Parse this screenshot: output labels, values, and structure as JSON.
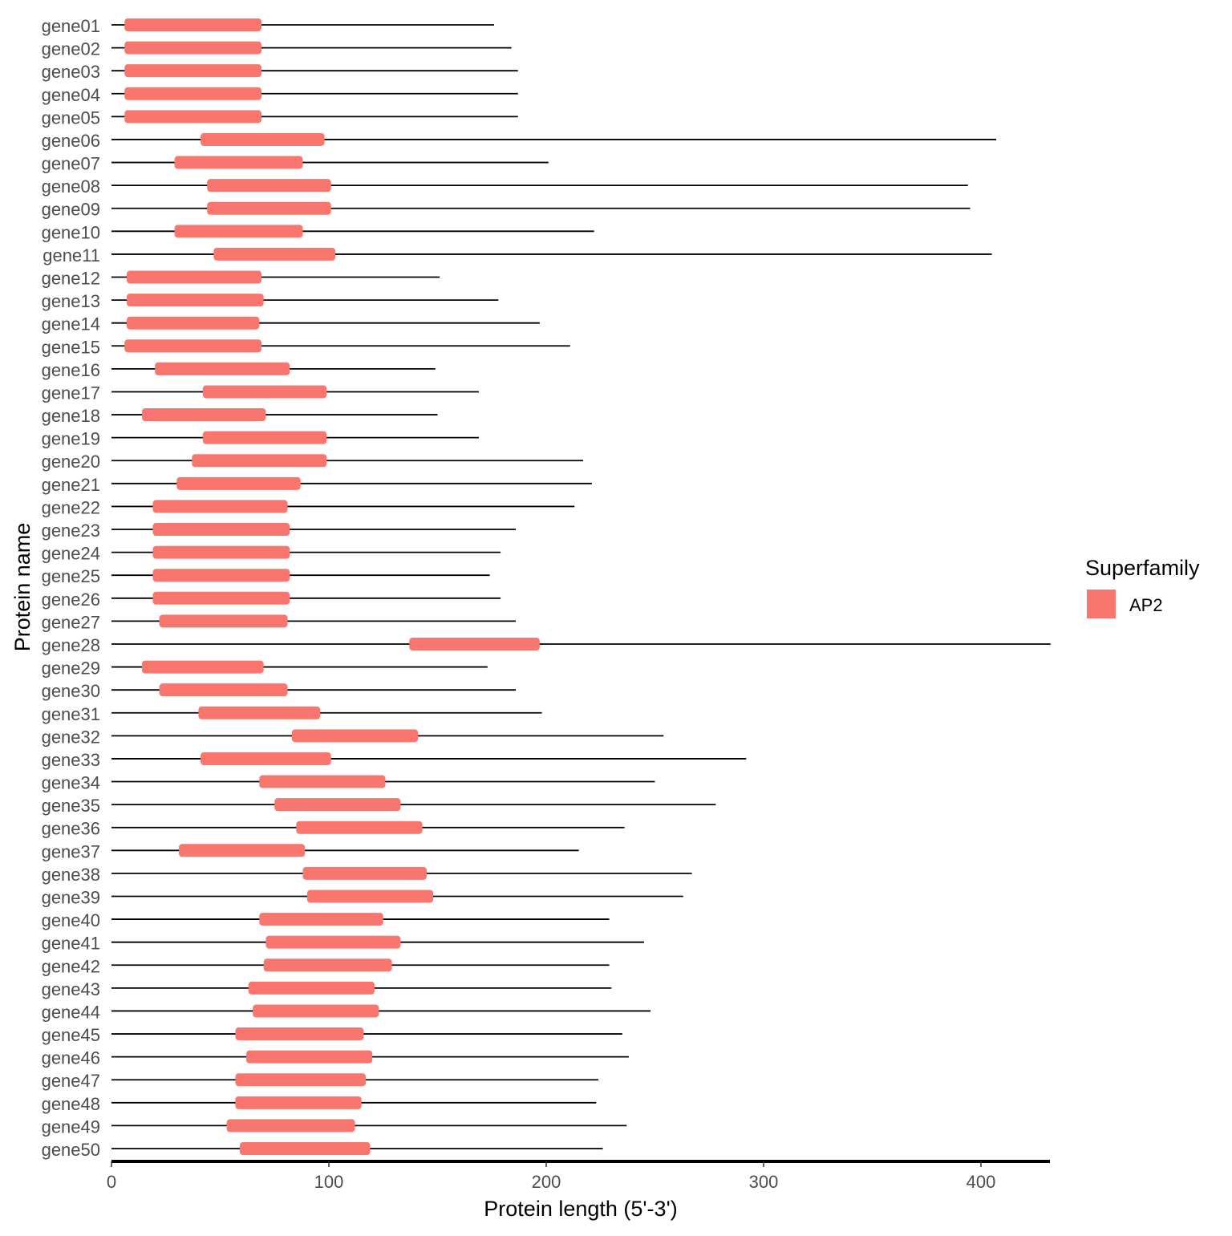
{
  "chart_data": {
    "type": "bar",
    "subtype": "protein-domain-map",
    "xlabel": "Protein length (5'-3')",
    "ylabel": "Protein name",
    "xlim": [
      0,
      432
    ],
    "xticks": [
      0,
      100,
      200,
      300,
      400
    ],
    "grid": false,
    "legend": {
      "title": "Superfamily",
      "position": "right",
      "entries": [
        {
          "label": "AP2",
          "color": "#F8766D"
        }
      ]
    },
    "line_color": "#000000",
    "proteins": [
      {
        "name": "gene01",
        "length": 176,
        "domain": [
          6,
          69
        ]
      },
      {
        "name": "gene02",
        "length": 184,
        "domain": [
          6,
          69
        ]
      },
      {
        "name": "gene03",
        "length": 187,
        "domain": [
          6,
          69
        ]
      },
      {
        "name": "gene04",
        "length": 187,
        "domain": [
          6,
          69
        ]
      },
      {
        "name": "gene05",
        "length": 187,
        "domain": [
          6,
          69
        ]
      },
      {
        "name": "gene06",
        "length": 407,
        "domain": [
          41,
          98
        ]
      },
      {
        "name": "gene07",
        "length": 201,
        "domain": [
          29,
          88
        ]
      },
      {
        "name": "gene08",
        "length": 394,
        "domain": [
          44,
          101
        ]
      },
      {
        "name": "gene09",
        "length": 395,
        "domain": [
          44,
          101
        ]
      },
      {
        "name": "gene10",
        "length": 222,
        "domain": [
          29,
          88
        ]
      },
      {
        "name": "gene11",
        "length": 405,
        "domain": [
          47,
          103
        ]
      },
      {
        "name": "gene12",
        "length": 151,
        "domain": [
          7,
          69
        ]
      },
      {
        "name": "gene13",
        "length": 178,
        "domain": [
          7,
          70
        ]
      },
      {
        "name": "gene14",
        "length": 197,
        "domain": [
          7,
          68
        ]
      },
      {
        "name": "gene15",
        "length": 211,
        "domain": [
          6,
          69
        ]
      },
      {
        "name": "gene16",
        "length": 149,
        "domain": [
          20,
          82
        ]
      },
      {
        "name": "gene17",
        "length": 169,
        "domain": [
          42,
          99
        ]
      },
      {
        "name": "gene18",
        "length": 150,
        "domain": [
          14,
          71
        ]
      },
      {
        "name": "gene19",
        "length": 169,
        "domain": [
          42,
          99
        ]
      },
      {
        "name": "gene20",
        "length": 217,
        "domain": [
          37,
          99
        ]
      },
      {
        "name": "gene21",
        "length": 221,
        "domain": [
          30,
          87
        ]
      },
      {
        "name": "gene22",
        "length": 213,
        "domain": [
          19,
          81
        ]
      },
      {
        "name": "gene23",
        "length": 186,
        "domain": [
          19,
          82
        ]
      },
      {
        "name": "gene24",
        "length": 179,
        "domain": [
          19,
          82
        ]
      },
      {
        "name": "gene25",
        "length": 174,
        "domain": [
          19,
          82
        ]
      },
      {
        "name": "gene26",
        "length": 179,
        "domain": [
          19,
          82
        ]
      },
      {
        "name": "gene27",
        "length": 186,
        "domain": [
          22,
          81
        ]
      },
      {
        "name": "gene28",
        "length": 432,
        "domain": [
          137,
          197
        ]
      },
      {
        "name": "gene29",
        "length": 173,
        "domain": [
          14,
          70
        ]
      },
      {
        "name": "gene30",
        "length": 186,
        "domain": [
          22,
          81
        ]
      },
      {
        "name": "gene31",
        "length": 198,
        "domain": [
          40,
          96
        ]
      },
      {
        "name": "gene32",
        "length": 254,
        "domain": [
          83,
          141
        ]
      },
      {
        "name": "gene33",
        "length": 292,
        "domain": [
          41,
          101
        ]
      },
      {
        "name": "gene34",
        "length": 250,
        "domain": [
          68,
          126
        ]
      },
      {
        "name": "gene35",
        "length": 278,
        "domain": [
          75,
          133
        ]
      },
      {
        "name": "gene36",
        "length": 236,
        "domain": [
          85,
          143
        ]
      },
      {
        "name": "gene37",
        "length": 215,
        "domain": [
          31,
          89
        ]
      },
      {
        "name": "gene38",
        "length": 267,
        "domain": [
          88,
          145
        ]
      },
      {
        "name": "gene39",
        "length": 263,
        "domain": [
          90,
          148
        ]
      },
      {
        "name": "gene40",
        "length": 229,
        "domain": [
          68,
          125
        ]
      },
      {
        "name": "gene41",
        "length": 245,
        "domain": [
          71,
          133
        ]
      },
      {
        "name": "gene42",
        "length": 229,
        "domain": [
          70,
          129
        ]
      },
      {
        "name": "gene43",
        "length": 230,
        "domain": [
          63,
          121
        ]
      },
      {
        "name": "gene44",
        "length": 248,
        "domain": [
          65,
          123
        ]
      },
      {
        "name": "gene45",
        "length": 235,
        "domain": [
          57,
          116
        ]
      },
      {
        "name": "gene46",
        "length": 238,
        "domain": [
          62,
          120
        ]
      },
      {
        "name": "gene47",
        "length": 224,
        "domain": [
          57,
          117
        ]
      },
      {
        "name": "gene48",
        "length": 223,
        "domain": [
          57,
          115
        ]
      },
      {
        "name": "gene49",
        "length": 237,
        "domain": [
          53,
          112
        ]
      },
      {
        "name": "gene50",
        "length": 226,
        "domain": [
          59,
          119
        ]
      }
    ]
  }
}
